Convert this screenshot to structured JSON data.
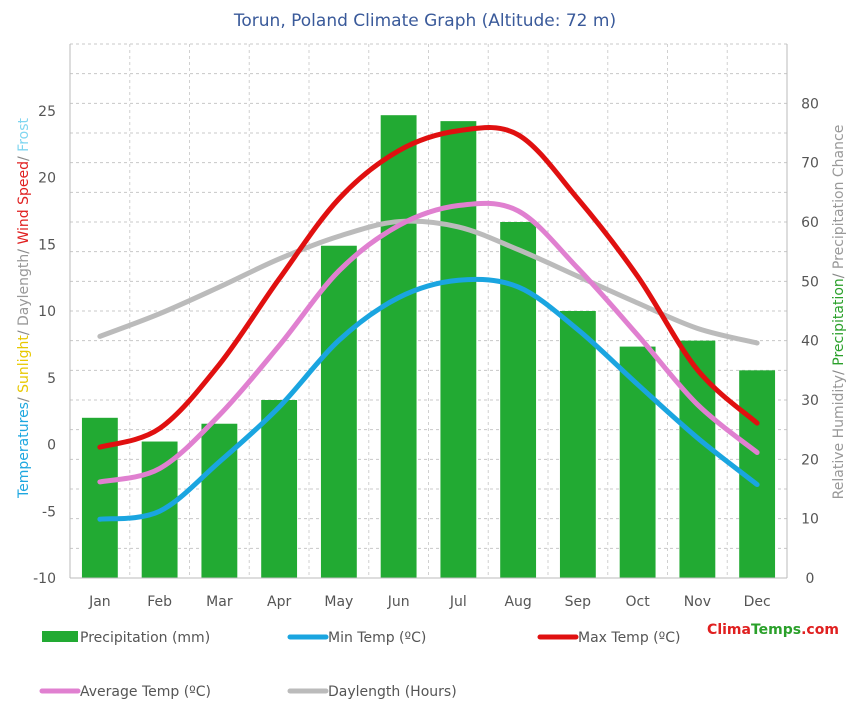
{
  "chart_data": {
    "type": "bar",
    "title": "Torun, Poland Climate Graph (Altitude: 72 m)",
    "categories": [
      "Jan",
      "Feb",
      "Mar",
      "Apr",
      "May",
      "Jun",
      "Jul",
      "Aug",
      "Sep",
      "Oct",
      "Nov",
      "Dec"
    ],
    "y_left": {
      "label_parts": [
        {
          "text": "Temperatures",
          "color": "#1ea7e0"
        },
        {
          "text": "/ ",
          "color": "#888888"
        },
        {
          "text": "Sunlight",
          "color": "#e8c800"
        },
        {
          "text": "/ ",
          "color": "#888888"
        },
        {
          "text": "Daylength",
          "color": "#999999"
        },
        {
          "text": "/ ",
          "color": "#888888"
        },
        {
          "text": "Wind Speed",
          "color": "#e02020"
        },
        {
          "text": "/ ",
          "color": "#888888"
        },
        {
          "text": "Frost",
          "color": "#7fd6f0"
        }
      ],
      "ticks": [
        "-10",
        "-5",
        "0",
        "5",
        "10",
        "15",
        "20",
        "25"
      ],
      "range": [
        -10,
        30
      ]
    },
    "y_right": {
      "label_parts": [
        {
          "text": "Relative Humidity",
          "color": "#999999"
        },
        {
          "text": "/ ",
          "color": "#888888"
        },
        {
          "text": "Precipitation",
          "color": "#2aa02a"
        },
        {
          "text": "/ ",
          "color": "#888888"
        },
        {
          "text": "Precipitation Chance",
          "color": "#999999"
        }
      ],
      "ticks": [
        "0",
        "10",
        "20",
        "30",
        "40",
        "50",
        "60",
        "70",
        "80"
      ],
      "range": [
        0,
        90
      ]
    },
    "series": [
      {
        "name": "Precipitation (mm)",
        "type": "bar",
        "axis": "right",
        "color": "#22aa33",
        "values": [
          27,
          23,
          26,
          30,
          56,
          78,
          77,
          60,
          45,
          39,
          40,
          35
        ]
      },
      {
        "name": "Min Temp (ºC)",
        "type": "line",
        "axis": "left",
        "color": "#1aa5e0",
        "values": [
          -5.6,
          -5.0,
          -1.3,
          2.8,
          7.8,
          11.0,
          12.3,
          11.8,
          8.6,
          4.5,
          0.5,
          -3.0
        ]
      },
      {
        "name": "Max Temp (ºC)",
        "type": "line",
        "axis": "left",
        "color": "#e01010",
        "values": [
          -0.2,
          1.2,
          6.0,
          12.4,
          18.4,
          22.0,
          23.5,
          23.2,
          18.4,
          12.6,
          5.6,
          1.6
        ]
      },
      {
        "name": "Average Temp (ºC)",
        "type": "line",
        "axis": "left",
        "color": "#e080d0",
        "values": [
          -2.8,
          -1.8,
          2.2,
          7.4,
          13.0,
          16.4,
          17.9,
          17.5,
          13.2,
          8.2,
          3.0,
          -0.6
        ]
      },
      {
        "name": "Daylength (Hours)",
        "type": "line",
        "axis": "left",
        "color": "#bbbbbb",
        "values": [
          8.1,
          9.8,
          11.8,
          13.9,
          15.6,
          16.7,
          16.3,
          14.6,
          12.6,
          10.6,
          8.7,
          7.6
        ]
      }
    ],
    "legend": [
      {
        "label": "Precipitation (mm)",
        "color": "#22aa33",
        "kind": "box"
      },
      {
        "label": "Min Temp (ºC)",
        "color": "#1aa5e0",
        "kind": "line"
      },
      {
        "label": "Max Temp (ºC)",
        "color": "#e01010",
        "kind": "line"
      },
      {
        "label": "Average Temp (ºC)",
        "color": "#e080d0",
        "kind": "line"
      },
      {
        "label": "Daylength (Hours)",
        "color": "#bbbbbb",
        "kind": "line"
      }
    ],
    "legend_position": "bottom",
    "grid": true
  },
  "brand": {
    "part1": "Clima",
    "part2": "Temps",
    "part3": ".com",
    "color1": "#e02020",
    "color2": "#2aa02a"
  }
}
